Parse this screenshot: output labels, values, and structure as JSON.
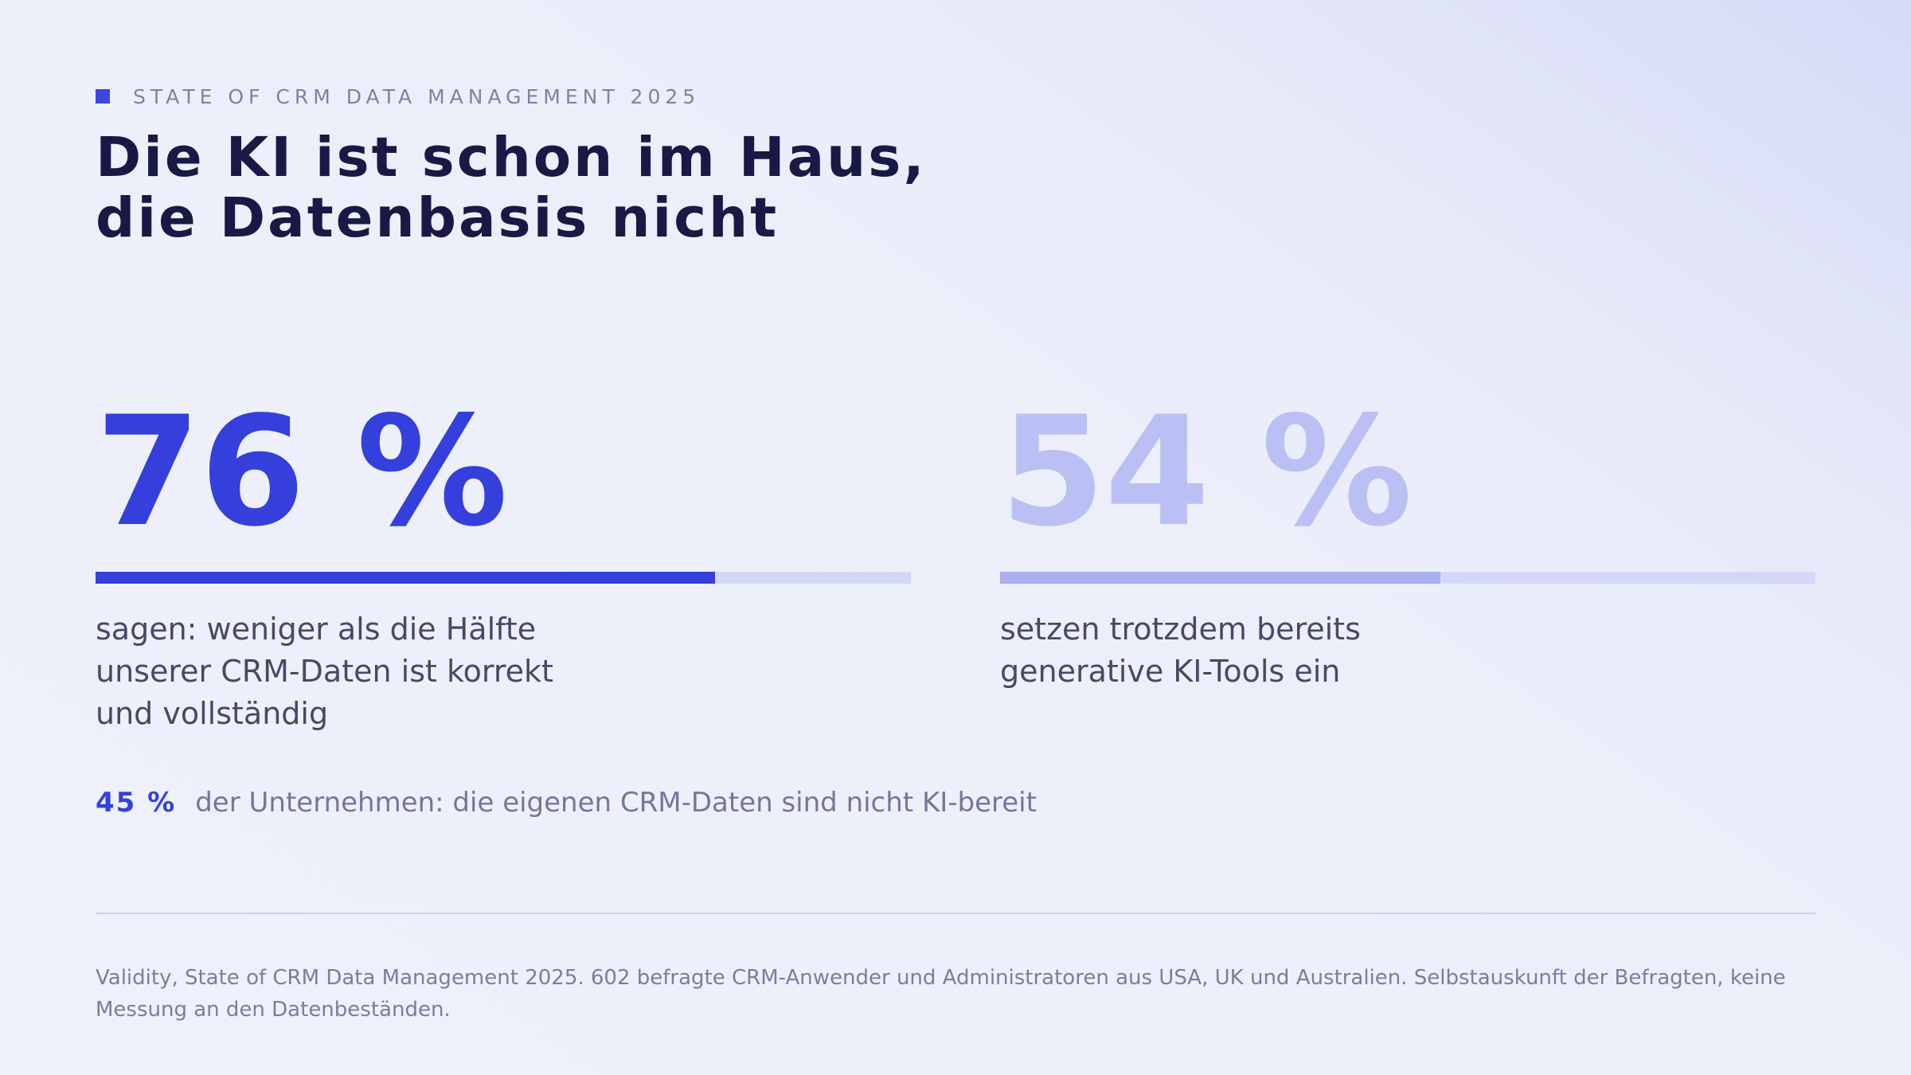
{
  "header": {
    "eyebrow": "STATE OF CRM DATA MANAGEMENT 2025",
    "title_lines": [
      "Die KI ist schon im Haus,",
      "die Datenbasis nicht"
    ]
  },
  "stats": [
    {
      "value_text": "76 %",
      "value": 76,
      "caption": "sagen: weniger als die Hälfte\nunserer CRM-Daten ist korrekt\nund vollständig",
      "color": "#343FDC",
      "bar_color": "#3540DC"
    },
    {
      "value_text": "54 %",
      "value": 54,
      "caption": "setzen trotzdem bereits\ngenerative KI-Tools ein",
      "color": "#BBC0F4",
      "bar_color": "#A9AFEF"
    }
  ],
  "note": {
    "value": "45 %",
    "text": "der Unternehmen: die eigenen CRM-Daten sind nicht KI-bereit"
  },
  "source": "Validity, State of CRM Data Management 2025. 602 befragte CRM-Anwender und Administratoren aus USA, UK und Australien. Selbstauskunft der Befragten, keine Messung an den Datenbeständen.",
  "colors": {
    "accent": "#3B47DF",
    "track": "#D4D8F7",
    "heading": "#181A45",
    "body_text": "#474965",
    "muted_text": "#7B7E9B"
  }
}
